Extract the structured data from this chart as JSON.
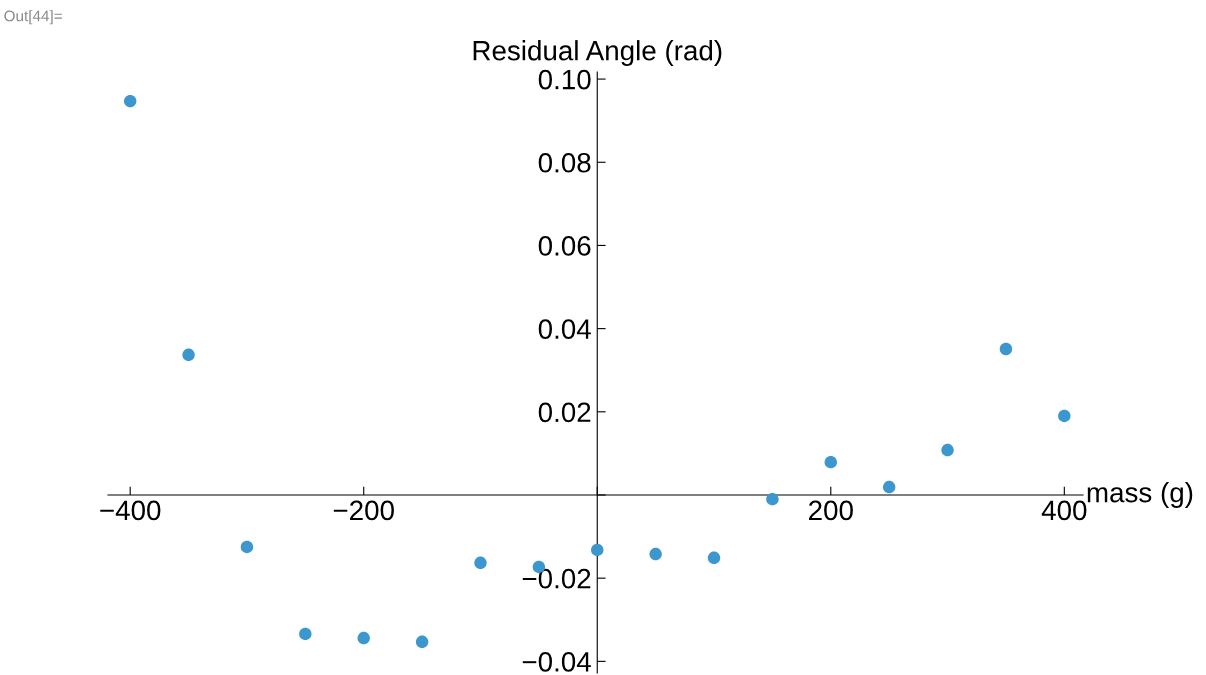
{
  "chart_data": {
    "type": "scatter",
    "ylabel": "Residual Angle (rad)",
    "xlabel": "mass (g)",
    "annotations": [
      "Out[44]="
    ],
    "x": [
      -400,
      -350,
      -300,
      -250,
      -200,
      -150,
      -100,
      -50,
      0,
      50,
      100,
      150,
      200,
      250,
      300,
      350,
      400
    ],
    "series": [
      {
        "color": "#3d97cf",
        "values": [
          0.0947,
          0.0337,
          -0.0125,
          -0.0334,
          -0.0344,
          -0.0353,
          -0.0163,
          -0.0173,
          -0.0132,
          -0.0142,
          -0.0151,
          -0.001,
          0.0079,
          0.0019,
          0.0108,
          0.0351,
          0.019
        ]
      }
    ],
    "xlim": [
      -419,
      416
    ],
    "ylim": [
      -0.0428,
      0.1017
    ],
    "xticks": [
      {
        "value": -400,
        "label": "−400"
      },
      {
        "value": -200,
        "label": "−200"
      },
      {
        "value": 0,
        "label": null
      },
      {
        "value": 200,
        "label": "200"
      },
      {
        "value": 400,
        "label": "400"
      }
    ],
    "yticks": [
      {
        "value": -0.04,
        "label": "−0.04"
      },
      {
        "value": -0.02,
        "label": "−0.02"
      },
      {
        "value": 0,
        "label": null
      },
      {
        "value": 0.02,
        "label": "0.02"
      },
      {
        "value": 0.04,
        "label": "0.04"
      },
      {
        "value": 0.06,
        "label": "0.06"
      },
      {
        "value": 0.08,
        "label": "0.08"
      },
      {
        "value": 0.1,
        "label": "0.10"
      }
    ],
    "marker": "circle",
    "grid": false,
    "legend": false
  }
}
